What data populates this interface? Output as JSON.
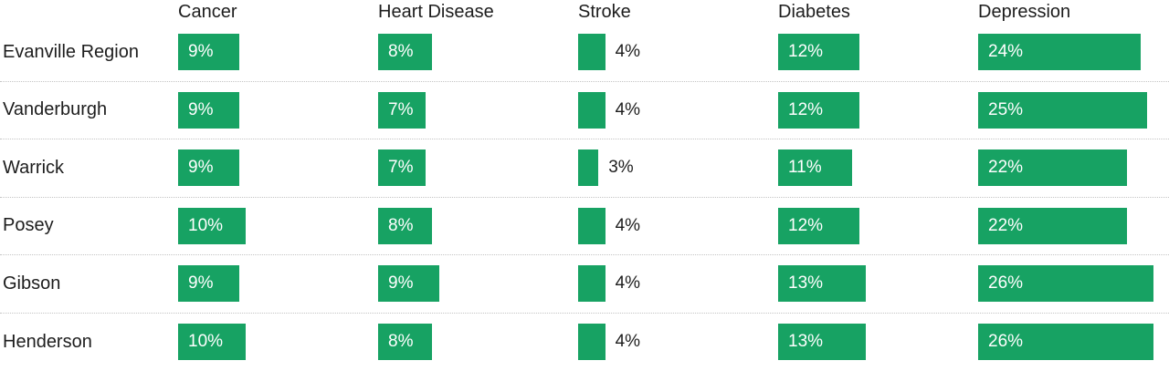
{
  "chart_data": {
    "type": "bar",
    "orientation": "horizontal",
    "unit": "%",
    "legend_position": "none",
    "grid": "dotted-row-dividers",
    "xlim": [
      0,
      29
    ],
    "columns": [
      "Cancer",
      "Heart Disease",
      "Stroke",
      "Diabetes",
      "Depression"
    ],
    "rows": [
      {
        "label": "Evanville Region",
        "values": [
          {
            "value": 9,
            "display": "9%"
          },
          {
            "value": 8,
            "display": "8%"
          },
          {
            "value": 4,
            "display": "4%"
          },
          {
            "value": 12,
            "display": "12%"
          },
          {
            "value": 24,
            "display": "24%"
          }
        ]
      },
      {
        "label": "Vanderburgh",
        "values": [
          {
            "value": 9,
            "display": "9%"
          },
          {
            "value": 7,
            "display": "7%"
          },
          {
            "value": 4,
            "display": "4%"
          },
          {
            "value": 12,
            "display": "12%"
          },
          {
            "value": 25,
            "display": "25%"
          }
        ]
      },
      {
        "label": "Warrick",
        "values": [
          {
            "value": 9,
            "display": "9%"
          },
          {
            "value": 7,
            "display": "7%"
          },
          {
            "value": 3,
            "display": "3%"
          },
          {
            "value": 11,
            "display": "11%"
          },
          {
            "value": 22,
            "display": "22%"
          }
        ]
      },
      {
        "label": "Posey",
        "values": [
          {
            "value": 10,
            "display": "10%"
          },
          {
            "value": 8,
            "display": "8%"
          },
          {
            "value": 4,
            "display": "4%"
          },
          {
            "value": 12,
            "display": "12%"
          },
          {
            "value": 22,
            "display": "22%"
          }
        ]
      },
      {
        "label": "Gibson",
        "values": [
          {
            "value": 9,
            "display": "9%"
          },
          {
            "value": 9,
            "display": "9%"
          },
          {
            "value": 4,
            "display": "4%"
          },
          {
            "value": 13,
            "display": "13%"
          },
          {
            "value": 26,
            "display": "26%"
          }
        ]
      },
      {
        "label": "Henderson",
        "values": [
          {
            "value": 10,
            "display": "10%"
          },
          {
            "value": 8,
            "display": "8%"
          },
          {
            "value": 4,
            "display": "4%"
          },
          {
            "value": 13,
            "display": "13%"
          },
          {
            "value": 26,
            "display": "26%"
          }
        ]
      }
    ],
    "colors": {
      "bar": "#17a263",
      "label_inside": "#ffffff",
      "label_outside": "#1d1d1d",
      "divider": "#c4c4c4",
      "text": "#1d1d1d"
    }
  }
}
